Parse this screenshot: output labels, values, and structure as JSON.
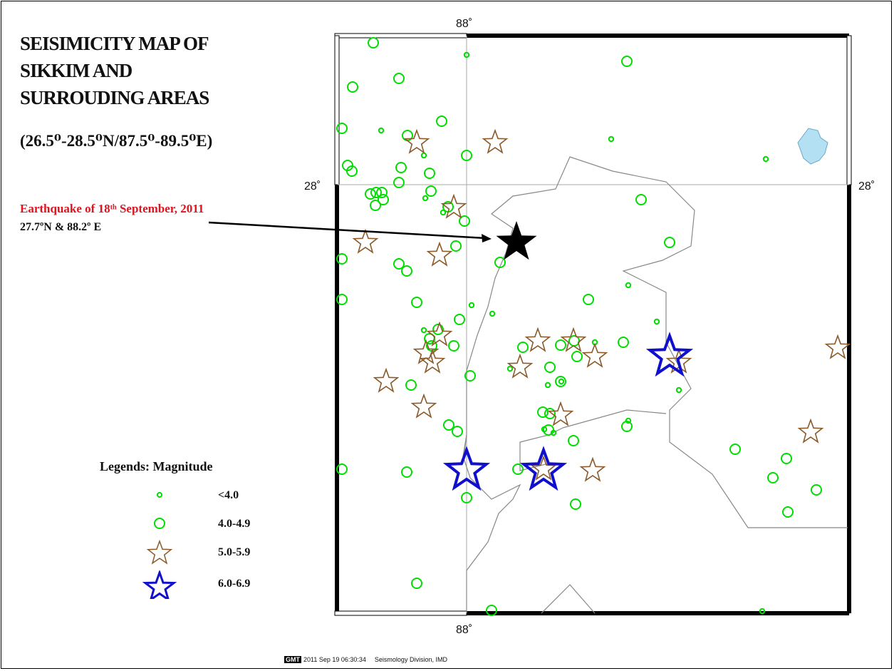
{
  "title": {
    "line1": "SEISIMICITY MAP OF",
    "line2": "SIKKIM AND",
    "line3": "SURROUDING AREAS"
  },
  "region": {
    "lat_range": "(26.5⁰-28.5⁰N/87.5⁰-89.5⁰E)"
  },
  "highlight": {
    "label": "Earthquake of 18ᵗʰ September, 2011",
    "coords": "27.7ºN &   88.2º E",
    "lat": 27.7,
    "lon": 88.2
  },
  "axes": {
    "top_lon": "88˚",
    "bottom_lon": "88˚",
    "left_lat": "28˚",
    "right_lat": "28˚"
  },
  "legend": {
    "title": "Legends:  Magnitude",
    "items": [
      {
        "symbol": "small-circle",
        "label": "<4.0",
        "color": "#00dd00"
      },
      {
        "symbol": "circle",
        "label": "4.0-4.9",
        "color": "#00dd00"
      },
      {
        "symbol": "star",
        "label": "5.0-5.9",
        "color": "#8b5a2b"
      },
      {
        "symbol": "big-star",
        "label": "6.0-6.9",
        "color": "#0000cc"
      }
    ]
  },
  "colors": {
    "small_event": "#00dd00",
    "medium_event": "#00dd00",
    "m5_event": "#8b5a2b",
    "m6_event": "#1010cc",
    "main_event": "#000000",
    "lake": "#b3e0f2",
    "border": "#888888"
  },
  "footer": {
    "gmt": "GMT",
    "timestamp": "2011 Sep 19 06:30:34",
    "credit": "Seismology Division, IMD"
  }
}
